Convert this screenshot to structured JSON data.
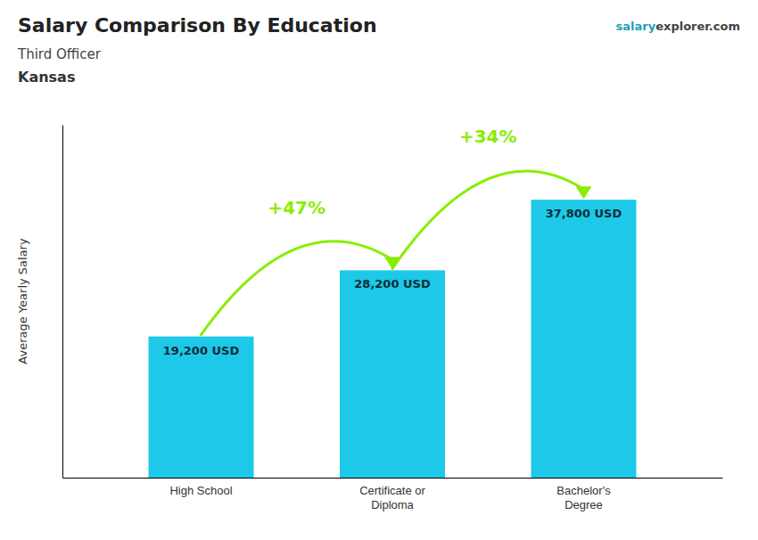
{
  "chart_data": {
    "type": "bar",
    "title": "Salary Comparison By Education",
    "subtitle": [
      "Third Officer",
      "Kansas"
    ],
    "y_label": "Average Yearly Salary",
    "categories": [
      "High School",
      "Certificate or\nDiploma",
      "Bachelor's\nDegree"
    ],
    "values": [
      19200,
      28200,
      37800
    ],
    "value_labels": [
      "19,200 USD",
      "28,200 USD",
      "37,800 USD"
    ],
    "data_labels": true,
    "color": "#1EC8E8",
    "ylim": [
      0,
      48000
    ],
    "tick_labels": "x",
    "annotations": [
      {
        "text": "+47%",
        "from": 0,
        "to": 1,
        "color": "#88EE00"
      },
      {
        "text": "+34%",
        "from": 1,
        "to": 2,
        "color": "#88EE00"
      },
      {
        "text": "salary"
      },
      {
        "text": "explorer.com"
      }
    ]
  }
}
